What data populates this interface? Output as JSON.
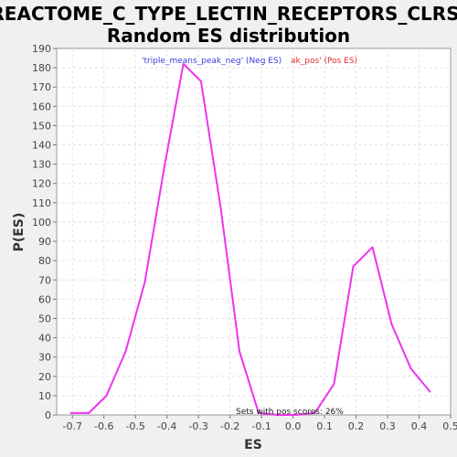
{
  "chart_data": {
    "type": "line",
    "title_line1": "REACTOME_C_TYPE_LECTIN_RECEPTORS_CLRS:",
    "title_line2": "Random ES distribution",
    "xlabel": "ES",
    "ylabel": "P(ES)",
    "xlim": [
      -0.75,
      0.5
    ],
    "ylim": [
      0,
      190
    ],
    "x_ticks": [
      -0.7,
      -0.6,
      -0.5,
      -0.4,
      -0.3,
      -0.2,
      -0.1,
      0.0,
      0.1,
      0.2,
      0.3,
      0.4,
      0.5
    ],
    "x_tick_labels": [
      "-0.7",
      "-0.6",
      "-0.5",
      "-0.4",
      "-0.3",
      "-0.2",
      "-0.1",
      "0.0",
      "0.1",
      "0.2",
      "0.3",
      "0.4",
      "0.5"
    ],
    "y_ticks": [
      0,
      10,
      20,
      30,
      40,
      50,
      60,
      70,
      80,
      90,
      100,
      110,
      120,
      130,
      140,
      150,
      160,
      170,
      180,
      190
    ],
    "grid": true,
    "legend": {
      "neg_label": "'triple_means_peak_neg' (Neg ES)",
      "pos_label": "ak_pos' (Pos ES)",
      "placement": "top-center"
    },
    "annotation": "Sets with pos scores: 26%",
    "series": [
      {
        "color": "#ee33ee",
        "x": [
          -0.706,
          -0.648,
          -0.592,
          -0.531,
          -0.47,
          -0.409,
          -0.348,
          -0.292,
          -0.23,
          -0.17,
          -0.109,
          -0.048,
          0.008,
          0.069,
          0.13,
          0.191,
          0.252,
          0.313,
          0.374,
          0.435
        ],
        "y": [
          1,
          1,
          10,
          33,
          69,
          128,
          182,
          173,
          108,
          33,
          1,
          0,
          0,
          1,
          16,
          77,
          87,
          47,
          24,
          12
        ]
      }
    ]
  }
}
